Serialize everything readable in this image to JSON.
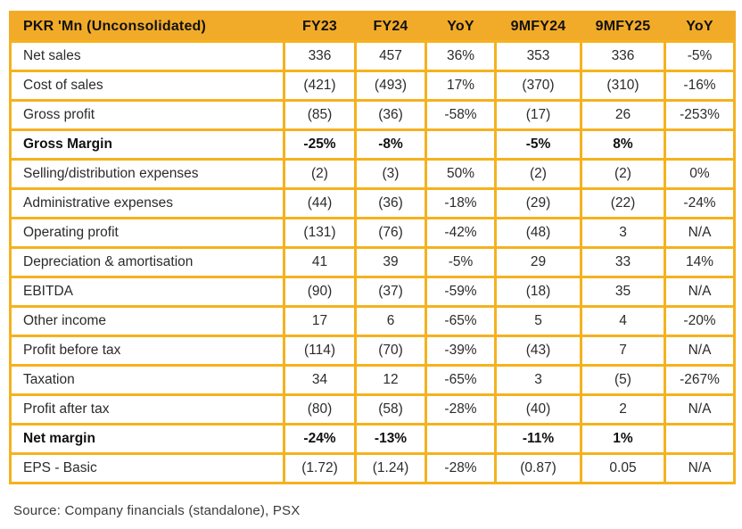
{
  "chart_data": {
    "type": "table",
    "title": "PKR 'Mn (Unconsolidated)",
    "header": [
      "PKR 'Mn (Unconsolidated)",
      "FY23",
      "FY24",
      "YoY",
      "9MFY24",
      "9MFY25",
      "YoY"
    ],
    "rows": [
      {
        "label": "Net sales",
        "bold": false,
        "values": [
          "336",
          "457",
          "36%",
          "353",
          "336",
          "-5%"
        ]
      },
      {
        "label": "Cost of sales",
        "bold": false,
        "values": [
          "(421)",
          "(493)",
          "17%",
          "(370)",
          "(310)",
          "-16%"
        ]
      },
      {
        "label": "Gross profit",
        "bold": false,
        "values": [
          "(85)",
          "(36)",
          "-58%",
          "(17)",
          "26",
          "-253%"
        ]
      },
      {
        "label": "Gross Margin",
        "bold": true,
        "values": [
          "-25%",
          "-8%",
          "",
          "-5%",
          "8%",
          ""
        ]
      },
      {
        "label": "Selling/distribution expenses",
        "bold": false,
        "values": [
          "(2)",
          "(3)",
          "50%",
          "(2)",
          "(2)",
          "0%"
        ]
      },
      {
        "label": "Administrative expenses",
        "bold": false,
        "values": [
          "(44)",
          "(36)",
          "-18%",
          "(29)",
          "(22)",
          "-24%"
        ]
      },
      {
        "label": "Operating profit",
        "bold": false,
        "values": [
          "(131)",
          "(76)",
          "-42%",
          "(48)",
          "3",
          "N/A"
        ]
      },
      {
        "label": "Depreciation & amortisation",
        "bold": false,
        "values": [
          "41",
          "39",
          "-5%",
          "29",
          "33",
          "14%"
        ]
      },
      {
        "label": "EBITDA",
        "bold": false,
        "values": [
          "(90)",
          "(37)",
          "-59%",
          "(18)",
          "35",
          "N/A"
        ]
      },
      {
        "label": "Other income",
        "bold": false,
        "values": [
          "17",
          "6",
          "-65%",
          "5",
          "4",
          "-20%"
        ]
      },
      {
        "label": "Profit before tax",
        "bold": false,
        "values": [
          "(114)",
          "(70)",
          "-39%",
          "(43)",
          "7",
          "N/A"
        ]
      },
      {
        "label": "Taxation",
        "bold": false,
        "values": [
          "34",
          "12",
          "-65%",
          "3",
          "(5)",
          "-267%"
        ]
      },
      {
        "label": "Profit after tax",
        "bold": false,
        "values": [
          "(80)",
          "(58)",
          "-28%",
          "(40)",
          "2",
          "N/A"
        ]
      },
      {
        "label": "Net margin",
        "bold": true,
        "values": [
          "-24%",
          "-13%",
          "",
          "-11%",
          "1%",
          ""
        ]
      },
      {
        "label": "EPS - Basic",
        "bold": false,
        "values": [
          "(1.72)",
          "(1.24)",
          "-28%",
          "(0.87)",
          "0.05",
          "N/A"
        ]
      }
    ]
  },
  "source_note": "Source: Company financials (standalone), PSX",
  "colors": {
    "header_bg": "#F2AB29",
    "border": "#F5B21E",
    "text": "#2B2B2B",
    "bold_text": "#111111"
  }
}
